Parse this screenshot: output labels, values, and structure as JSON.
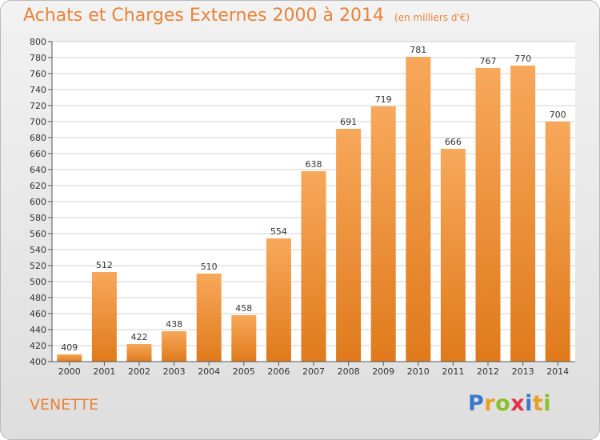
{
  "header": {
    "title": "Achats et Charges Externes 2000 à 2014",
    "unit": "(en milliers d'€)"
  },
  "commune": "VENETTE",
  "logo": {
    "text": "Proxiti",
    "letters": [
      "P",
      "r",
      "o",
      "x",
      "i",
      "t",
      "i"
    ]
  },
  "colors": {
    "bar_top": "#f7a85a",
    "bar_bottom": "#e07a1c",
    "title": "#e8833a"
  },
  "chart_data": {
    "type": "bar",
    "title": "Achats et Charges Externes 2000 à 2014",
    "categories": [
      "2000",
      "2001",
      "2002",
      "2003",
      "2004",
      "2005",
      "2006",
      "2007",
      "2008",
      "2009",
      "2010",
      "2011",
      "2012",
      "2013",
      "2014"
    ],
    "values": [
      409,
      512,
      422,
      438,
      510,
      458,
      554,
      638,
      691,
      719,
      781,
      666,
      767,
      770,
      700
    ],
    "ylim": [
      400,
      800
    ],
    "yticks": [
      400,
      420,
      440,
      460,
      480,
      500,
      520,
      540,
      560,
      580,
      600,
      620,
      640,
      660,
      680,
      700,
      720,
      740,
      760,
      780,
      800
    ],
    "grid": true,
    "xlabel": "",
    "ylabel": ""
  }
}
